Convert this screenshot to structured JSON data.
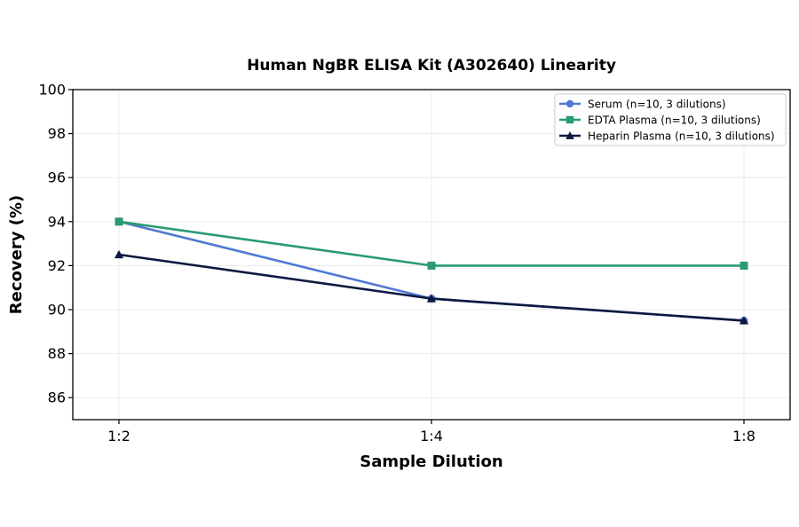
{
  "chart_data": {
    "type": "line",
    "title": "Human NgBR ELISA Kit (A302640) Linearity",
    "xlabel": "Sample Dilution",
    "ylabel": "Recovery (%)",
    "categories": [
      "1:2",
      "1:4",
      "1:8"
    ],
    "ylim": [
      85,
      100
    ],
    "yticks": [
      86,
      88,
      90,
      92,
      94,
      96,
      98,
      100
    ],
    "grid": true,
    "legend_position": "top-right",
    "series": [
      {
        "name": "Serum (n=10, 3 dilutions)",
        "values": [
          94,
          90.5,
          89.5
        ],
        "color": "#4f79d3",
        "marker": "circle"
      },
      {
        "name": "EDTA Plasma (n=10, 3 dilutions)",
        "values": [
          94,
          92,
          92
        ],
        "color": "#2a9a72",
        "marker": "square"
      },
      {
        "name": "Heparin Plasma (n=10, 3 dilutions)",
        "values": [
          92.5,
          90.5,
          89.5
        ],
        "color": "#0d1a40",
        "marker": "triangle"
      }
    ]
  }
}
